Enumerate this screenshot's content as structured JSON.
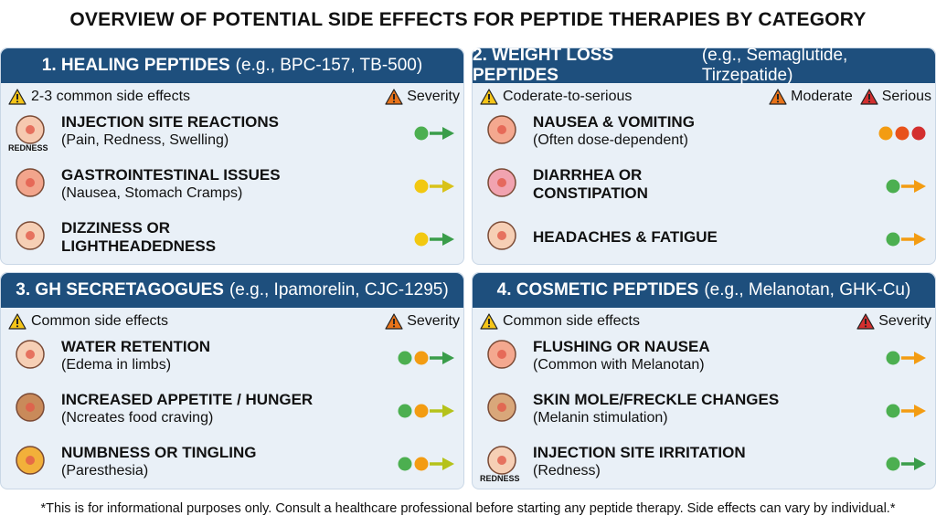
{
  "title": "OVERVIEW OF POTENTIAL SIDE EFFECTS FOR PEPTIDE THERAPIES BY CATEGORY",
  "panels": [
    {
      "header": {
        "name": "1. HEALING PEPTIDES",
        "examples": "(e.g., BPC-157, TB-500)"
      },
      "note": "2-3 common side effects",
      "severity_labels": [
        {
          "text": "Severity",
          "color": "#e8731a"
        }
      ],
      "items": [
        {
          "title": [
            "INJECTION SITE REACTIONS"
          ],
          "detail": "(Pain, Redness, Swelling)",
          "icon_label": "REDNESS",
          "dots": [
            "#4caf50"
          ],
          "arrow": "#3a9d4a"
        },
        {
          "title": [
            "GASTROINTESTINAL ISSUES"
          ],
          "detail": "(Nausea, Stomach Cramps)",
          "dots": [
            "#f2c811"
          ],
          "arrow": "#d8c21a"
        },
        {
          "title": [
            "DIZZINESS OR",
            "LIGHTHEADEDNESS"
          ],
          "dots": [
            "#f2c811"
          ],
          "arrow": "#3a9d4a"
        }
      ]
    },
    {
      "header": {
        "name": "2. WEIGHT LOSS PEPTIDES",
        "examples": "(e.g., Semaglutide, Tirzepatide)"
      },
      "note": "Coderate-to-serious",
      "severity_labels": [
        {
          "text": "Moderate",
          "color": "#e8731a"
        },
        {
          "text": "Serious",
          "color": "#d32f2f"
        }
      ],
      "items": [
        {
          "title": [
            "NAUSEA & VOMITING"
          ],
          "detail": "(Often dose-dependent)",
          "dots": [
            "#f39c12",
            "#e8521a",
            "#d32f2f"
          ]
        },
        {
          "title": [
            "DIARRHEA OR",
            "CONSTIPATION"
          ],
          "dots": [
            "#4caf50"
          ],
          "arrow": "#f39c12"
        },
        {
          "title": [
            "HEADACHES & FATIGUE"
          ],
          "dots": [
            "#4caf50"
          ],
          "arrow": "#f39c12"
        }
      ]
    },
    {
      "header": {
        "name": "3. GH SECRETAGOGUES",
        "examples": "(e.g., Ipamorelin, CJC-1295)"
      },
      "note": "Common side effects",
      "severity_labels": [
        {
          "text": "Severity",
          "color": "#e8731a"
        }
      ],
      "items": [
        {
          "title": [
            "WATER RETENTION"
          ],
          "detail": "(Edema in limbs)",
          "dots": [
            "#4caf50",
            "#f39c12"
          ],
          "arrow": "#3a9d4a"
        },
        {
          "title": [
            "INCREASED APPETITE / HUNGER"
          ],
          "detail": "(Ncreates food craving)",
          "dots": [
            "#4caf50",
            "#f39c12"
          ],
          "arrow": "#b5c21a"
        },
        {
          "title": [
            "NUMBNESS OR TINGLING"
          ],
          "detail": "(Paresthesia)",
          "dots": [
            "#4caf50",
            "#f39c12"
          ],
          "arrow": "#b5c21a"
        }
      ]
    },
    {
      "header": {
        "name": "4. COSMETIC PEPTIDES",
        "examples": "(e.g., Melanotan, GHK-Cu)"
      },
      "note": "Common side effects",
      "severity_labels": [
        {
          "text": "Severity",
          "color": "#d32f2f"
        }
      ],
      "items": [
        {
          "title": [
            "FLUSHING OR NAUSEA"
          ],
          "detail": "(Common with Melanotan)",
          "dots": [
            "#4caf50"
          ],
          "arrow": "#f39c12"
        },
        {
          "title": [
            "SKIN MOLE/FRECKLE CHANGES"
          ],
          "detail": "(Melanin stimulation)",
          "dots": [
            "#4caf50"
          ],
          "arrow": "#f39c12"
        },
        {
          "title": [
            "INJECTION SITE IRRITATION"
          ],
          "detail": "(Redness)",
          "icon_label": "REDNESS",
          "dots": [
            "#4caf50"
          ],
          "arrow": "#3a9d4a"
        }
      ]
    }
  ],
  "footer": "*This is for informational purposes only. Consult a healthcare professional before starting any peptide therapy. Side effects can vary by individual.*"
}
